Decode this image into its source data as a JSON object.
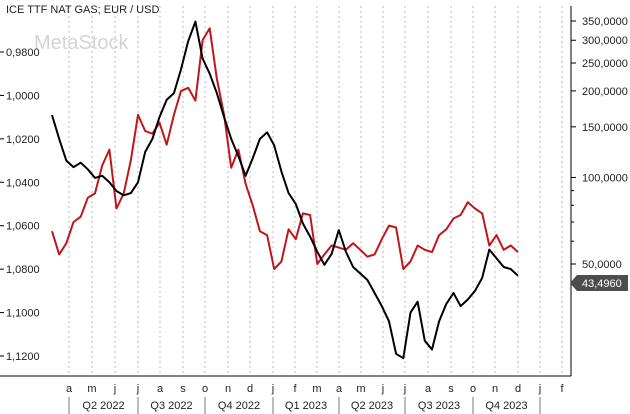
{
  "chart_data": {
    "type": "line",
    "title": "ICE TTF NAT GAS; EUR / USD",
    "watermark": "MetaStock",
    "x": [
      0,
      1,
      2,
      3,
      4,
      5,
      6,
      7,
      8,
      9,
      10,
      11,
      12,
      13,
      14,
      15,
      16,
      17,
      18,
      19,
      20,
      21,
      22,
      23,
      24,
      25,
      26,
      27,
      28,
      29,
      30,
      31,
      32,
      33,
      34,
      35,
      36,
      37,
      38,
      39,
      40,
      41,
      42,
      43,
      44,
      45,
      46,
      47,
      48,
      49,
      50,
      51,
      52,
      53,
      54,
      55,
      56,
      57,
      58,
      59,
      60,
      61,
      62,
      63,
      64,
      65,
      66,
      67,
      68,
      69,
      70,
      71,
      72,
      73,
      74,
      75,
      76,
      77,
      78,
      79,
      80,
      81,
      82,
      83,
      84,
      85,
      86,
      87,
      88,
      89,
      90,
      91,
      92,
      93,
      94,
      95,
      96,
      97,
      98,
      99,
      100,
      101,
      102,
      103,
      104,
      105,
      106,
      107,
      108,
      109,
      110,
      111,
      112,
      113,
      114,
      115,
      116,
      117,
      118,
      119,
      120,
      121,
      122,
      123,
      124,
      125,
      126,
      127,
      128,
      129,
      130,
      131,
      132,
      133,
      134,
      135,
      136,
      137,
      138,
      139,
      140,
      141,
      142,
      143,
      144,
      145,
      146,
      147,
      148,
      149,
      150,
      151,
      152,
      153,
      154,
      155,
      156,
      157,
      158,
      159,
      160,
      161,
      162,
      163,
      164,
      165,
      166,
      167,
      168,
      169,
      170,
      171,
      172,
      173,
      174,
      175,
      176,
      177,
      178,
      179,
      180,
      181,
      182,
      183,
      184,
      185,
      186,
      187,
      188,
      189,
      190,
      191,
      192,
      193,
      194,
      195,
      196,
      197,
      198,
      199,
      200,
      201,
      202,
      203,
      204,
      205,
      206,
      207,
      208,
      209,
      210,
      211,
      212,
      213,
      214,
      215,
      216,
      217,
      218,
      219,
      220,
      221,
      222,
      223,
      224,
      225,
      226,
      227,
      228,
      229,
      230,
      231,
      232,
      233,
      234,
      235,
      236,
      237,
      238,
      239,
      240,
      241,
      242,
      243,
      244,
      245,
      246,
      247,
      248,
      249,
      250,
      251,
      252,
      253,
      254,
      255,
      256,
      257,
      258,
      259,
      260,
      261,
      262,
      263,
      264,
      265,
      266,
      267,
      268,
      269,
      270,
      271,
      272,
      273,
      274,
      275,
      276,
      277,
      278,
      279,
      280,
      281,
      282,
      283,
      284,
      285,
      286,
      287,
      288,
      289,
      290,
      291,
      292,
      293,
      294,
      295,
      296,
      297,
      298,
      299,
      300,
      301,
      302,
      303,
      304,
      305,
      306,
      307,
      308,
      309,
      310,
      311,
      312,
      313,
      314,
      315,
      316,
      317,
      318,
      319,
      320,
      321,
      322,
      323,
      324,
      325,
      326,
      327,
      328,
      329,
      330,
      331,
      332,
      333,
      334,
      335,
      336,
      337,
      338,
      339,
      340,
      341,
      342,
      343,
      344,
      345,
      346,
      347,
      348,
      349,
      350,
      351,
      352,
      353,
      354,
      355,
      356,
      357,
      358,
      359,
      360,
      361,
      362,
      363,
      364,
      365,
      366,
      367,
      368,
      369,
      370,
      371,
      372,
      373,
      374,
      375,
      376,
      377,
      378,
      379,
      380,
      381,
      382,
      383,
      384,
      385,
      386,
      387,
      388,
      389,
      390,
      391,
      392,
      393,
      394,
      395,
      396,
      397,
      398,
      399,
      400,
      401,
      402,
      403,
      404,
      405,
      406,
      407,
      408,
      409,
      410,
      411,
      412,
      413,
      414,
      415,
      416,
      417,
      418,
      419,
      420,
      421,
      422,
      423,
      424,
      425,
      426,
      427,
      428,
      429,
      430,
      431,
      432,
      433,
      434,
      435,
      436,
      437,
      438,
      439,
      440,
      441,
      442,
      443,
      444,
      445,
      446,
      447,
      448,
      449,
      450,
      451,
      452,
      453,
      454,
      455,
      456,
      457,
      458,
      459,
      460,
      461,
      462,
      463,
      464,
      465,
      466,
      467,
      468,
      469,
      470,
      471,
      472,
      473,
      474,
      475,
      476,
      477,
      478,
      479,
      480,
      481,
      482,
      483,
      484,
      485,
      486,
      487,
      488,
      489,
      490,
      491,
      492,
      493,
      494,
      495,
      496,
      497,
      498,
      499,
      500,
      501,
      502,
      503,
      504,
      505,
      506,
      507,
      508,
      509,
      510,
      511,
      512,
      513,
      514,
      515,
      516,
      517
    ],
    "x_unit": "pixel-x in source image (ignored, see x_labels)",
    "x_labels": {
      "months": [
        "a",
        "m",
        "j",
        "j",
        "a",
        "s",
        "o",
        "n",
        "d",
        "j",
        "f",
        "m",
        "a",
        "m",
        "j",
        "j",
        "a",
        "s",
        "o",
        "n",
        "d",
        "j",
        "f"
      ],
      "quarters": [
        "Q2 2022",
        "Q3 2022",
        "Q4 2022",
        "Q1 2023",
        "Q2 2023",
        "Q3 2023",
        "Q4 2023"
      ]
    },
    "series": [
      {
        "axis": "left",
        "color": "#000000",
        "points": [
          [
            0,
            1.009
          ],
          [
            1,
            1.023
          ],
          [
            2,
            1.032
          ],
          [
            3,
            1.034
          ],
          [
            4,
            1.032
          ],
          [
            5,
            1.036
          ],
          [
            6,
            1.038
          ],
          [
            7,
            1.037
          ],
          [
            8,
            1.04
          ],
          [
            9,
            1.045
          ],
          [
            10,
            1.047
          ],
          [
            11,
            1.046
          ],
          [
            12,
            1.042
          ],
          [
            13,
            1.028
          ],
          [
            14,
            1.02
          ],
          [
            15,
            1.01
          ],
          [
            16,
            1.002
          ],
          [
            17,
            0.999
          ],
          [
            18,
            0.985
          ],
          [
            19,
            0.964
          ],
          [
            20,
            0.976
          ],
          [
            21,
            0.993
          ],
          [
            22,
            1.0
          ],
          [
            23,
            1.012
          ],
          [
            24,
            1.027
          ],
          [
            25,
            1.038
          ],
          [
            26,
            1.03
          ],
          [
            27,
            1.02
          ],
          [
            28,
            1.017
          ],
          [
            29,
            1.023
          ],
          [
            30,
            1.036
          ],
          [
            31,
            1.045
          ],
          [
            32,
            1.051
          ],
          [
            33,
            1.059
          ],
          [
            34,
            1.066
          ],
          [
            35,
            1.072
          ],
          [
            36,
            1.08
          ],
          [
            37,
            1.076
          ],
          [
            38,
            1.062
          ],
          [
            39,
            1.072
          ],
          [
            40,
            1.079
          ],
          [
            41,
            1.082
          ],
          [
            42,
            1.085
          ],
          [
            43,
            1.09
          ],
          [
            44,
            1.096
          ],
          [
            45,
            1.103
          ],
          [
            46,
            1.119
          ],
          [
            47,
            1.121
          ],
          [
            48,
            1.1
          ],
          [
            49,
            1.095
          ],
          [
            50,
            1.113
          ],
          [
            51,
            1.117
          ],
          [
            52,
            1.1
          ],
          [
            53,
            1.095
          ],
          [
            54,
            1.09
          ],
          [
            55,
            1.097
          ],
          [
            56,
            1.094
          ],
          [
            57,
            1.09
          ],
          [
            58,
            1.083
          ],
          [
            59,
            1.077
          ],
          [
            60,
            1.07
          ],
          [
            61,
            1.075
          ],
          [
            62,
            1.079
          ],
          [
            63,
            1.081
          ],
          [
            64,
            1.083
          ]
        ]
      }
    ]
  },
  "left_axis": {
    "ticks": [
      "0,9800",
      "1,0000",
      "1,0200",
      "1,0400",
      "1,0600",
      "1,0800",
      "1,1000",
      "1,1200"
    ],
    "min": 0.968,
    "max": 1.13,
    "inverted": true
  },
  "right_axis": {
    "ticks": [
      "350,0000",
      "300,0000",
      "250,0000",
      "200,0000",
      "150,0000",
      "100,0000",
      "50,0000"
    ],
    "scale": "log",
    "min": 40,
    "max": 360,
    "last_value": "43,4960"
  },
  "series": {
    "black": {
      "name": "",
      "color": "#000000",
      "axis": "left",
      "values": [
        1.009,
        1.02,
        1.03,
        1.033,
        1.031,
        1.034,
        1.038,
        1.037,
        1.04,
        1.044,
        1.046,
        1.045,
        1.04,
        1.026,
        1.02,
        1.01,
        1.002,
        0.999,
        0.988,
        0.975,
        0.966,
        0.983,
        0.99,
        0.999,
        1.01,
        1.02,
        1.028,
        1.037,
        1.029,
        1.02,
        1.017,
        1.023,
        1.035,
        1.045,
        1.05,
        1.059,
        1.065,
        1.072,
        1.078,
        1.073,
        1.062,
        1.072,
        1.079,
        1.082,
        1.085,
        1.091,
        1.097,
        1.104,
        1.119,
        1.121,
        1.1,
        1.095,
        1.113,
        1.117,
        1.104,
        1.096,
        1.091,
        1.097,
        1.094,
        1.09,
        1.084,
        1.071,
        1.075,
        1.079,
        1.08,
        1.083
      ]
    },
    "red": {
      "name": "",
      "color": "#c0161b",
      "axis": "right",
      "values": [
        65,
        54,
        59,
        70,
        73,
        85,
        88,
        110,
        125,
        78,
        88,
        115,
        165,
        145,
        142,
        155,
        130,
        165,
        200,
        205,
        185,
        300,
        330,
        220,
        165,
        108,
        125,
        95,
        80,
        65,
        63,
        48,
        51,
        66,
        61,
        75,
        74,
        50,
        54,
        58,
        57,
        56,
        59,
        56,
        53,
        54,
        61,
        68,
        67,
        48,
        51,
        58,
        56,
        55,
        63,
        66,
        72,
        74,
        82,
        78,
        75,
        58,
        63,
        56,
        58,
        55
      ]
    },
    "black_values_right": [
      150,
      120,
      112,
      110,
      113,
      118,
      114,
      111,
      105,
      99,
      104,
      132,
      160,
      195,
      200,
      210,
      225,
      270,
      330,
      370,
      280,
      220,
      210,
      190,
      165,
      150,
      132,
      120,
      108,
      100,
      90,
      75,
      72,
      80,
      85,
      80,
      78,
      70,
      68,
      70,
      64,
      61,
      56,
      54,
      51,
      50,
      56,
      48,
      45,
      44,
      48,
      50,
      57,
      55,
      58,
      59,
      65,
      80,
      77,
      74,
      70,
      70,
      65,
      62,
      60,
      61,
      58
    ]
  }
}
